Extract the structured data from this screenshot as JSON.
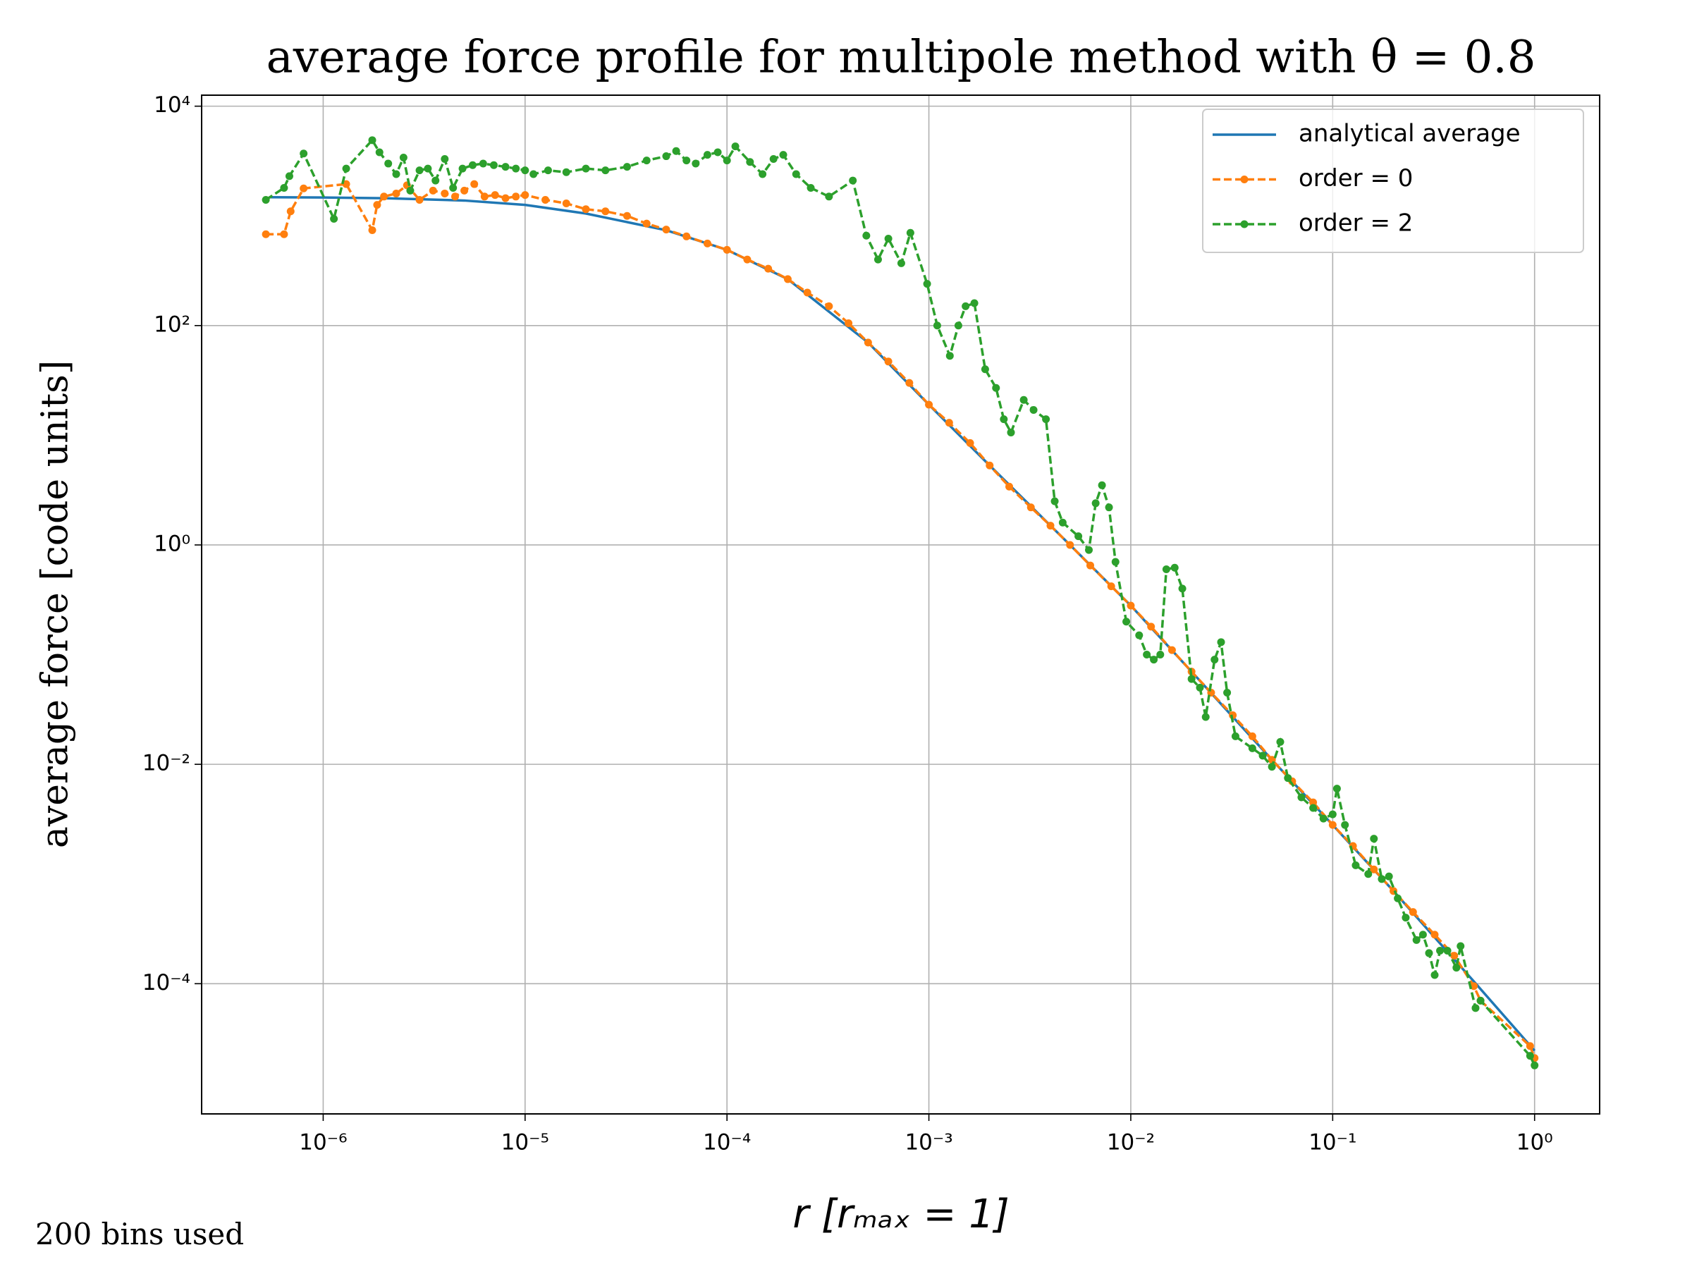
{
  "chart_data": {
    "type": "line",
    "title": "average force profile for multipole method with θ = 0.8",
    "xlabel": "r [rₘₐₓ = 1]",
    "ylabel": "average force [code units]",
    "annotation": "200 bins used",
    "xscale": "log",
    "yscale": "log",
    "grid": true,
    "legend": "upper right",
    "xlim": [
      2.5e-07,
      2.1
    ],
    "ylim": [
      6.5e-06,
      12600
    ],
    "xticks": [
      {
        "value": 1e-06,
        "label": "10⁻⁶"
      },
      {
        "value": 1e-05,
        "label": "10⁻⁵"
      },
      {
        "value": 0.0001,
        "label": "10⁻⁴"
      },
      {
        "value": 0.001,
        "label": "10⁻³"
      },
      {
        "value": 0.01,
        "label": "10⁻²"
      },
      {
        "value": 0.1,
        "label": "10⁻¹"
      },
      {
        "value": 1,
        "label": "10⁰"
      }
    ],
    "yticks": [
      {
        "value": 0.0001,
        "label": "10⁻⁴"
      },
      {
        "value": 0.01,
        "label": "10⁻²"
      },
      {
        "value": 1,
        "label": "10⁰"
      },
      {
        "value": 100,
        "label": "10²"
      },
      {
        "value": 10000,
        "label": "10⁴"
      }
    ],
    "series": [
      {
        "name": "analytical average",
        "color": "#1f77b4",
        "style": "solid",
        "markers": false,
        "x": [
          5.4e-07,
          1e-06,
          2e-06,
          5e-06,
          1e-05,
          2e-05,
          5e-05,
          0.0001,
          0.0002,
          0.0005,
          0.001,
          0.002,
          0.005,
          0.01,
          0.02,
          0.05,
          0.1,
          0.2,
          0.5,
          1
        ],
        "values": [
          1480,
          1470,
          1450,
          1380,
          1260,
          1050,
          740,
          490,
          265,
          70,
          19,
          5.3,
          1.0,
          0.28,
          0.07,
          0.011,
          0.0028,
          0.0007,
          0.000105,
          2.45e-05
        ]
      },
      {
        "name": "order = 0",
        "color": "#ff7f0e",
        "style": "dashed",
        "markers": true,
        "x": [
          5.2e-07,
          6.4e-07,
          6.9e-07,
          8e-07,
          1.3e-06,
          1.75e-06,
          1.85e-06,
          2e-06,
          2.3e-06,
          2.6e-06,
          3e-06,
          3.5e-06,
          4e-06,
          4.5e-06,
          5e-06,
          5.6e-06,
          6.3e-06,
          7.1e-06,
          8e-06,
          9e-06,
          1e-05,
          1.26e-05,
          1.6e-05,
          2e-05,
          2.5e-05,
          3.2e-05,
          4e-05,
          5e-05,
          6.3e-05,
          8e-05,
          0.0001,
          0.000126,
          0.00016,
          0.0002,
          0.00025,
          0.00032,
          0.0004,
          0.0005,
          0.00063,
          0.0008,
          0.001,
          0.00126,
          0.0016,
          0.002,
          0.0025,
          0.0032,
          0.004,
          0.005,
          0.0063,
          0.008,
          0.01,
          0.0126,
          0.016,
          0.02,
          0.025,
          0.032,
          0.04,
          0.05,
          0.063,
          0.08,
          0.1,
          0.126,
          0.16,
          0.2,
          0.25,
          0.32,
          0.4,
          0.5,
          0.54,
          0.95,
          1
        ],
        "values": [
          680,
          680,
          1100,
          1780,
          1950,
          740,
          1260,
          1500,
          1600,
          1900,
          1400,
          1700,
          1600,
          1500,
          1700,
          1950,
          1500,
          1550,
          1450,
          1500,
          1550,
          1400,
          1300,
          1150,
          1100,
          1000,
          850,
          750,
          650,
          560,
          490,
          400,
          330,
          265,
          200,
          150,
          105,
          70,
          47,
          30,
          19,
          13,
          8.5,
          5.3,
          3.4,
          2.2,
          1.5,
          1.0,
          0.65,
          0.42,
          0.28,
          0.18,
          0.11,
          0.07,
          0.045,
          0.028,
          0.018,
          0.011,
          0.007,
          0.0045,
          0.0028,
          0.0018,
          0.0011,
          0.0007,
          0.00045,
          0.00028,
          0.00018,
          9.5e-05,
          7e-05,
          2.7e-05,
          2.1e-05
        ]
      },
      {
        "name": "order = 2",
        "color": "#2ca02c",
        "style": "dashed",
        "markers": true,
        "x": [
          5.2e-07,
          6.4e-07,
          6.8e-07,
          8e-07,
          1.13e-06,
          1.3e-06,
          1.75e-06,
          1.9e-06,
          2.1e-06,
          2.3e-06,
          2.5e-06,
          2.7e-06,
          3e-06,
          3.3e-06,
          3.6e-06,
          4e-06,
          4.4e-06,
          4.9e-06,
          5.5e-06,
          6.2e-06,
          7e-06,
          8e-06,
          9e-06,
          1e-05,
          1.1e-05,
          1.3e-05,
          1.6e-05,
          2e-05,
          2.5e-05,
          3.2e-05,
          4e-05,
          5e-05,
          5.6e-05,
          6.3e-05,
          7e-05,
          8e-05,
          9e-05,
          0.0001,
          0.00011,
          0.00013,
          0.00015,
          0.00017,
          0.00019,
          0.00022,
          0.00026,
          0.00032,
          0.00042,
          0.00049,
          0.00056,
          0.00063,
          0.00073,
          0.00081,
          0.00098,
          0.0011,
          0.00127,
          0.0014,
          0.00152,
          0.00168,
          0.0019,
          0.00215,
          0.00235,
          0.00255,
          0.00295,
          0.0033,
          0.0038,
          0.0042,
          0.0046,
          0.0055,
          0.0062,
          0.0067,
          0.0072,
          0.0078,
          0.0084,
          0.0095,
          0.011,
          0.012,
          0.013,
          0.014,
          0.015,
          0.0165,
          0.018,
          0.02,
          0.022,
          0.0235,
          0.026,
          0.028,
          0.03,
          0.033,
          0.04,
          0.045,
          0.05,
          0.055,
          0.06,
          0.07,
          0.08,
          0.09,
          0.1,
          0.105,
          0.115,
          0.13,
          0.15,
          0.16,
          0.175,
          0.19,
          0.21,
          0.23,
          0.26,
          0.28,
          0.3,
          0.32,
          0.34,
          0.37,
          0.41,
          0.43,
          0.51,
          0.54,
          0.95,
          1
        ],
        "values": [
          1400,
          1800,
          2300,
          3700,
          940,
          2700,
          4900,
          3800,
          3000,
          2400,
          3400,
          1700,
          2600,
          2700,
          2100,
          3300,
          1800,
          2700,
          2900,
          3000,
          2900,
          2800,
          2700,
          2600,
          2400,
          2600,
          2500,
          2700,
          2600,
          2800,
          3200,
          3500,
          3900,
          3200,
          3000,
          3600,
          3800,
          3200,
          4300,
          3100,
          2400,
          3300,
          3600,
          2400,
          1800,
          1500,
          2100,
          660,
          400,
          620,
          370,
          700,
          240,
          100,
          53,
          100,
          150,
          160,
          40,
          27,
          14,
          10.6,
          21,
          17,
          14,
          2.5,
          1.6,
          1.2,
          0.9,
          2.4,
          3.5,
          2.2,
          0.7,
          0.2,
          0.15,
          0.1,
          0.09,
          0.1,
          0.6,
          0.62,
          0.4,
          0.06,
          0.05,
          0.027,
          0.09,
          0.13,
          0.045,
          0.018,
          0.014,
          0.012,
          0.0095,
          0.016,
          0.0075,
          0.005,
          0.004,
          0.0032,
          0.0035,
          0.006,
          0.0028,
          0.0012,
          0.001,
          0.0021,
          0.0009,
          0.00095,
          0.0006,
          0.0004,
          0.00025,
          0.00028,
          0.00019,
          0.00012,
          0.0002,
          0.0002,
          0.00014,
          0.00022,
          6e-05,
          7e-05,
          2.2e-05,
          1.8e-05
        ]
      }
    ]
  }
}
